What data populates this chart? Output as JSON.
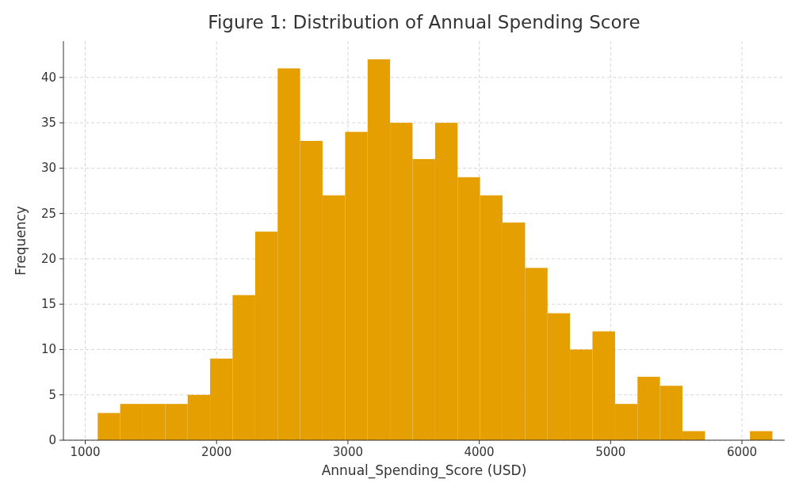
{
  "chart_data": {
    "type": "histogram",
    "title": "Figure 1: Distribution of Annual Spending Score",
    "xlabel": "Annual_Spending_Score (USD)",
    "ylabel": "Frequency",
    "bins": [
      1095,
      1266,
      1437,
      1609,
      1780,
      1951,
      2122,
      2294,
      2465,
      2636,
      2807,
      2979,
      3150,
      3321,
      3492,
      3664,
      3835,
      4006,
      4177,
      4349,
      4520,
      4691,
      4862,
      5034,
      5205,
      5376,
      5547,
      5719,
      5890,
      6061,
      6232
    ],
    "values": [
      3,
      4,
      4,
      4,
      5,
      9,
      16,
      23,
      41,
      33,
      27,
      34,
      42,
      35,
      31,
      35,
      29,
      27,
      24,
      19,
      14,
      10,
      12,
      4,
      7,
      6,
      1,
      0,
      0,
      1
    ],
    "color": "#e69f00",
    "xlim": [
      834,
      6326
    ],
    "ylim": [
      0,
      44
    ],
    "xticks": [
      1000,
      2000,
      3000,
      4000,
      5000,
      6000
    ],
    "yticks": [
      0,
      5,
      10,
      15,
      20,
      25,
      30,
      35,
      40
    ],
    "grid": true
  }
}
